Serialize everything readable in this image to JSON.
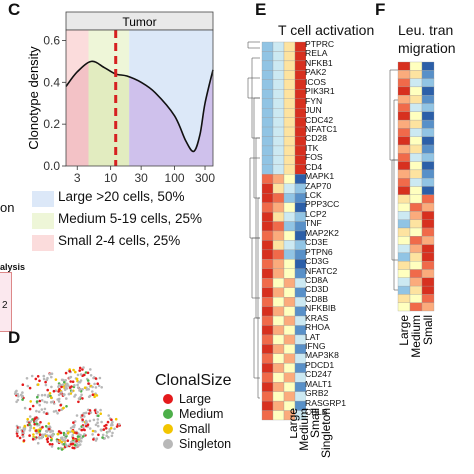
{
  "panels": {
    "c": "C",
    "d": "D",
    "e": "E",
    "f": "F"
  },
  "panel_c": {
    "strip_title": "Tumor",
    "ylabel": "Clonotype density",
    "yticks": [
      "0.6",
      "0.4",
      "0.2",
      "0.0"
    ],
    "xticks": [
      "3",
      "10",
      "30",
      "100",
      "300"
    ],
    "legend": [
      {
        "label": "Large >20 cells, 50%",
        "color": "#dce8f8"
      },
      {
        "label": "Medium 5-19 cells, 25%",
        "color": "#eef6d8"
      },
      {
        "label": "Small 2-4 cells, 25%",
        "color": "#fbdcdc"
      }
    ]
  },
  "panel_d": {
    "legend_title": "ClonalSize",
    "items": [
      {
        "label": "Large",
        "color": "#e41a1c"
      },
      {
        "label": "Medium",
        "color": "#4daf4a"
      },
      {
        "label": "Small",
        "color": "#f2c500"
      },
      {
        "label": "Singleton",
        "color": "#b8b8b8"
      }
    ]
  },
  "panel_e": {
    "title": "T cell activation",
    "columns": [
      "Large",
      "Medium",
      "Small",
      "Singleton"
    ],
    "genes": [
      "PTPRC",
      "RELA",
      "NFKB1",
      "PAK2",
      "ICOS",
      "PIK3R1",
      "FYN",
      "JUN",
      "CDC42",
      "NFATC1",
      "CD28",
      "ITK",
      "FOS",
      "CD4",
      "MAPK1",
      "ZAP70",
      "LCK",
      "PPP3CC",
      "LCP2",
      "TNF",
      "MAP2K2",
      "CD3E",
      "PTPN6",
      "CD3G",
      "NFATC2",
      "CD8A",
      "CD3D",
      "CD8B",
      "NFKBIB",
      "KRAS",
      "RHOA",
      "LAT",
      "IFNG",
      "MAP3K8",
      "PDCD1",
      "CD247",
      "MALT1",
      "GRB2",
      "RASGRP1",
      "CBLB"
    ]
  },
  "panel_f": {
    "title_line1": "Leu. tran",
    "title_line2": "migration",
    "columns": [
      "Large",
      "Medium",
      "Small"
    ]
  },
  "fragments": {
    "left_on": "on",
    "left_alysis": "alysis",
    "left_2": "2"
  },
  "chart_data": {
    "type": "area",
    "title": "Tumor",
    "ylabel": "Clonotype density",
    "xlabel": "",
    "x_scale": "log",
    "xlim": [
      2,
      400
    ],
    "ylim": [
      0.0,
      0.65
    ],
    "xticks": [
      3,
      10,
      30,
      100,
      300
    ],
    "yticks": [
      0.0,
      0.2,
      0.4,
      0.6
    ],
    "dashed_vline_x": 12,
    "regions": [
      {
        "name": "Small 2-4 cells",
        "x_range": [
          2,
          4
        ]
      },
      {
        "name": "Medium 5-19 cells",
        "x_range": [
          5,
          19
        ]
      },
      {
        "name": "Large >20 cells",
        "x_range": [
          20,
          400
        ]
      }
    ],
    "series": [
      {
        "x": [
          2,
          3,
          5,
          8,
          12,
          18,
          30,
          50,
          100,
          150,
          200,
          250,
          300,
          400
        ],
        "y": [
          0.38,
          0.45,
          0.5,
          0.47,
          0.44,
          0.43,
          0.4,
          0.35,
          0.24,
          0.12,
          0.07,
          0.15,
          0.3,
          0.46
        ]
      }
    ]
  }
}
